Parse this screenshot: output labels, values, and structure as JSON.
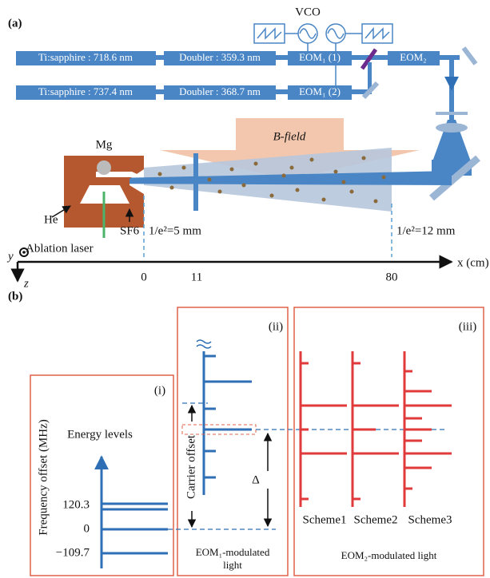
{
  "panel_a": {
    "label": "(a)",
    "vco": "VCO",
    "row1": {
      "laser": "Ti:sapphire : 718.6 nm",
      "doubler": "Doubler : 359.3 nm",
      "eom": "EOM₁ (1)",
      "eom2": "EOM₂"
    },
    "row2": {
      "laser": "Ti:sapphire : 737.4 nm",
      "doubler": "Doubler : 368.7 nm",
      "eom": "EOM₁ (2)"
    },
    "mg": "Mg",
    "b_field": "B-field",
    "he": "He",
    "sf6": "SF6",
    "ablation": "Ablation laser",
    "waist1": "1/e²=5 mm",
    "waist2": "1/e²=12 mm",
    "axis": {
      "y": "y",
      "z": "z",
      "x": "x (cm)",
      "ticks": [
        "0",
        "11",
        "80"
      ]
    }
  },
  "panel_b": {
    "label": "(b)",
    "box_i": {
      "label": "(i)",
      "title": "Energy levels",
      "axis": "Frequency offset (MHz)",
      "levels": [
        "120.3",
        "0",
        "−109.7"
      ]
    },
    "box_ii": {
      "label": "(ii)",
      "carrier": "Carrier offset",
      "delta": "Δ",
      "caption": "EOM₁-modulated light"
    },
    "box_iii": {
      "label": "(iii)",
      "schemes": [
        "Scheme1",
        "Scheme2",
        "Scheme3"
      ],
      "caption": "EOM₂-modulated light"
    }
  }
}
